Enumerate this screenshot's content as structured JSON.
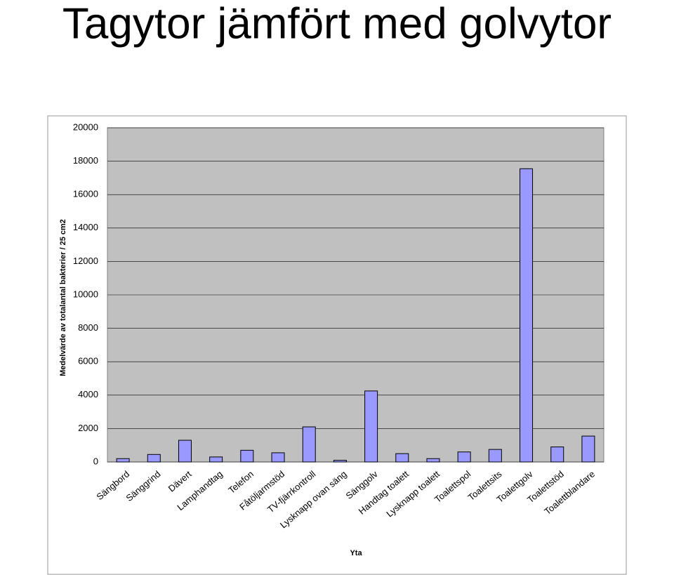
{
  "chart_data": {
    "type": "bar",
    "title": "Tagytor jämfört med golvytor",
    "x_label": "Yta",
    "y_label": "Medelvärde av totalantal bakterier / 25 cm2",
    "categories": [
      "Sängbord",
      "Sänggrind",
      "Dävert",
      "Lamphandtag",
      "Telefon",
      "Fåtöljarmstöd",
      "TV-fjärrkontroll",
      "Lysknapp ovan säng",
      "Sänggolv",
      "Handtag toalett",
      "Lysknapp toalett",
      "Toalettspol",
      "Toalettsits",
      "Toalettgolv",
      "Toalettstöd",
      "Toalettblandare"
    ],
    "values": [
      200,
      450,
      1300,
      300,
      700,
      550,
      2100,
      100,
      4250,
      500,
      200,
      600,
      750,
      17550,
      900,
      1550
    ],
    "color": "#9999ff",
    "ylim": [
      0,
      20000
    ],
    "yticks": [
      0,
      2000,
      4000,
      6000,
      8000,
      10000,
      12000,
      14000,
      16000,
      18000,
      20000
    ],
    "grid": true
  }
}
